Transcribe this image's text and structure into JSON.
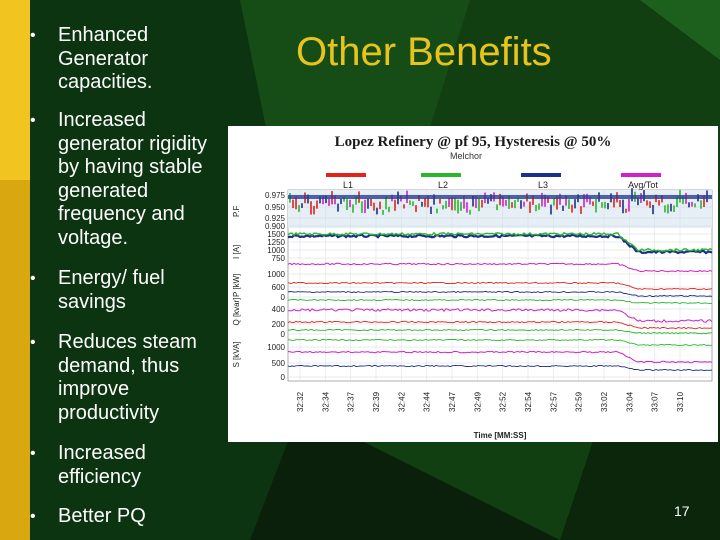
{
  "slide": {
    "title": "Other Benefits",
    "page_number": "17",
    "bullets": [
      "Enhanced Generator capacities.",
      "Increased generator rigidity by having stable generated frequency and voltage.",
      "Energy/ fuel savings",
      "Reduces steam demand, thus improve productivity",
      "Increased efficiency",
      "Better PQ"
    ]
  },
  "colors": {
    "background": "#0d3410",
    "accent_bar": "#f2c41f",
    "title": "#e8c31d",
    "text": "#ffffff"
  },
  "chart_data": {
    "type": "line",
    "title": "Lopez Refinery @ pf 95, Hysteresis @ 50%",
    "subtitle": "Melchor",
    "xlabel": "Time [MM:SS]",
    "x_ticks": [
      "32:32",
      "32:34",
      "32:37",
      "32:39",
      "32:42",
      "32:44",
      "32:47",
      "32:49",
      "32:52",
      "32:54",
      "32:57",
      "32:59",
      "33:02",
      "33:04",
      "33:07",
      "33:10"
    ],
    "legend": [
      {
        "name": "L1",
        "color": "#e2231a"
      },
      {
        "name": "L2",
        "color": "#2bb62b"
      },
      {
        "name": "L3",
        "color": "#1b2f8c"
      },
      {
        "name": "Avg/Tot",
        "color": "#d020c8"
      }
    ],
    "panels": [
      {
        "ylabel": "P.F",
        "ticks": [
          "0.975",
          "0.950",
          "0.925",
          "0.900"
        ]
      },
      {
        "ylabel": "I [A]",
        "ticks": [
          "1500",
          "1250",
          "1000",
          "750"
        ]
      },
      {
        "ylabel": "P [kW]",
        "ticks": [
          "1000",
          "600",
          "0"
        ]
      },
      {
        "ylabel": "Q [kvar]",
        "ticks": [
          "400",
          "200",
          "0"
        ]
      },
      {
        "ylabel": "S [kVA]",
        "ticks": [
          "1000",
          "500",
          "0"
        ]
      }
    ]
  }
}
